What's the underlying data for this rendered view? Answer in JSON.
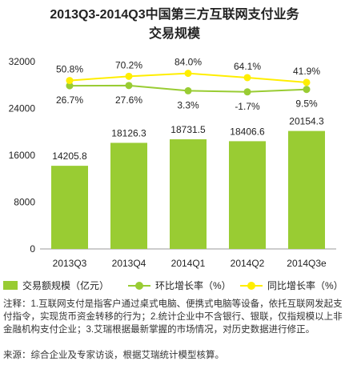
{
  "chart_data": {
    "type": "bar",
    "title_line1": "2013Q3-2014Q3中国第三方互联网支付业务",
    "title_line2": "交易规模",
    "categories": [
      "2013Q3",
      "2013Q4",
      "2014Q1",
      "2014Q2",
      "2014Q3e"
    ],
    "ylim": [
      0,
      32000
    ],
    "yticks": [
      "0",
      "8000",
      "16000",
      "24000",
      "32000"
    ],
    "grid": false,
    "legend_position": "bottom",
    "series": [
      {
        "name": "交易额规模（亿元）",
        "type": "bar",
        "values": [
          14205.8,
          18126.3,
          18731.5,
          18406.6,
          20154.3
        ],
        "labels": [
          "14205.8",
          "18126.3",
          "18731.5",
          "18406.6",
          "20154.3"
        ],
        "color": "#99cc33"
      },
      {
        "name": "环比增长率（%）",
        "type": "line",
        "values": [
          26.7,
          27.6,
          3.3,
          -1.7,
          9.5
        ],
        "labels": [
          "26.7%",
          "27.6%",
          "3.3%",
          "-1.7%",
          "9.5%"
        ],
        "color": "#99cc33"
      },
      {
        "name": "同比增长率（%）",
        "type": "line",
        "values": [
          50.8,
          70.2,
          84.0,
          64.1,
          41.9
        ],
        "labels": [
          "50.8%",
          "70.2%",
          "84.0%",
          "64.1%",
          "41.9%"
        ],
        "color": "#ffee00"
      }
    ]
  },
  "note": "注释：1.互联网支付是指客户通过桌式电脑、便携式电脑等设备，依托互联网发起支付指令，实现货币资金转移的行为；2.统计企业中不含银行、银联，仅指规模以上非金融机构支付企业；3.艾瑞根据最新掌握的市场情况，对历史数据进行修正。",
  "source": "来源：综合企业及专家访谈，根据艾瑞统计模型核算。"
}
